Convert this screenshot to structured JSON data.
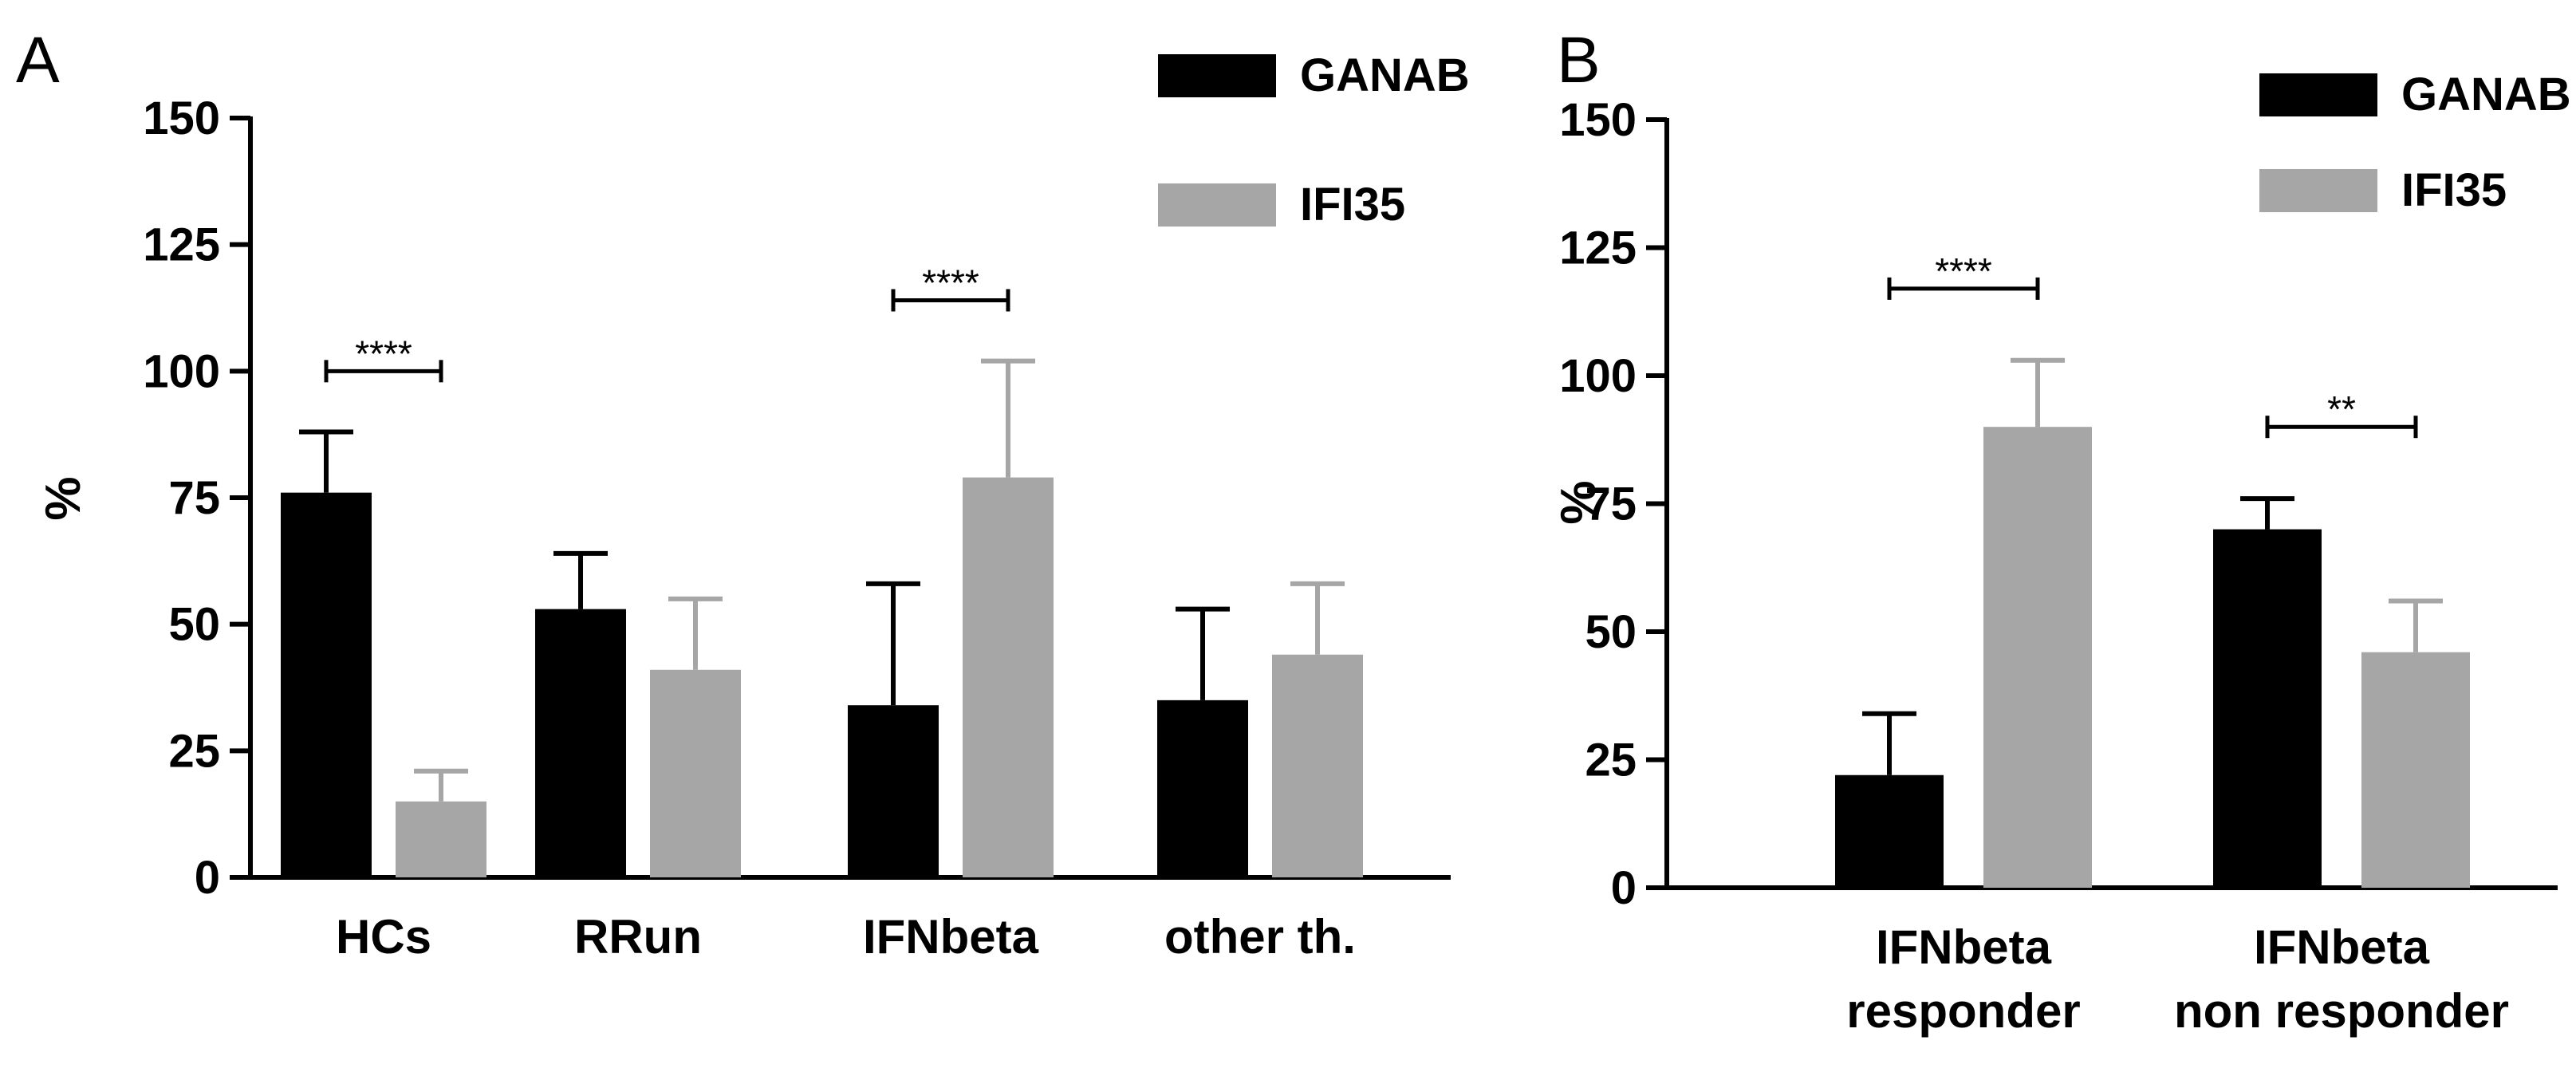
{
  "chart_data": [
    {
      "panel_label": "A",
      "type": "bar",
      "ylabel": "%",
      "ylim": [
        0,
        150
      ],
      "yticks": [
        0,
        25,
        50,
        75,
        100,
        125,
        150
      ],
      "categories": [
        "HCs",
        "RRun",
        "IFNbeta",
        "other th."
      ],
      "series": [
        {
          "name": "GANAB",
          "color": "#000000",
          "values": [
            76,
            53,
            34,
            35
          ],
          "errors": [
            12,
            11,
            24,
            18
          ]
        },
        {
          "name": "IFI35",
          "color": "#a6a6a6",
          "values": [
            15,
            41,
            79,
            44
          ],
          "errors": [
            6,
            14,
            23,
            14
          ]
        }
      ],
      "significance": [
        {
          "category": 0,
          "label": "****",
          "y": 100
        },
        {
          "category": 2,
          "label": "****",
          "y": 114
        }
      ],
      "legend_position": "top-right"
    },
    {
      "panel_label": "B",
      "type": "bar",
      "ylabel": "%",
      "ylim": [
        0,
        150
      ],
      "yticks": [
        0,
        25,
        50,
        75,
        100,
        125,
        150
      ],
      "categories": [
        [
          "IFNbeta",
          "responder"
        ],
        [
          "IFNbeta",
          "non responder"
        ]
      ],
      "series": [
        {
          "name": "GANAB",
          "color": "#000000",
          "values": [
            22,
            70
          ],
          "errors": [
            12,
            6
          ]
        },
        {
          "name": "IFI35",
          "color": "#a6a6a6",
          "values": [
            90,
            46
          ],
          "errors": [
            13,
            10
          ]
        }
      ],
      "significance": [
        {
          "category": 0,
          "label": "****",
          "y": 117
        },
        {
          "category": 1,
          "label": "**",
          "y": 90
        }
      ],
      "legend_position": "top-right"
    }
  ]
}
